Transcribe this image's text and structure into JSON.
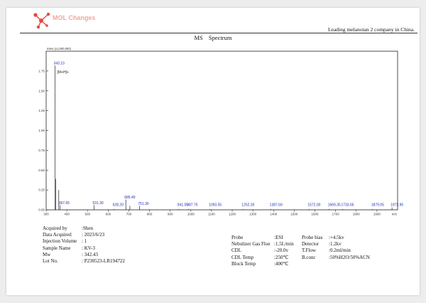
{
  "header": {
    "brand": "MOL Changes",
    "tagline": "Leading melanotan 2 company in China."
  },
  "title": {
    "ms": "MS",
    "spectrum": "Spectrum"
  },
  "chart_data": {
    "type": "bar",
    "y_axis_label": "Inten.(x1,000,000)",
    "x_unit": "m/z",
    "xlim": [
      300,
      2000
    ],
    "ylim": [
      0,
      2.0
    ],
    "x_ticks": [
      300,
      400,
      500,
      600,
      700,
      800,
      900,
      1000,
      1100,
      1200,
      1300,
      1400,
      1500,
      1600,
      1700,
      1800,
      1900
    ],
    "y_ticks": [
      0.0,
      0.25,
      0.5,
      0.75,
      1.0,
      1.25,
      1.5,
      1.75
    ],
    "y_tick_labels": [
      "0.00",
      "0.25",
      "0.50",
      "0.75",
      "1.00",
      "1.25",
      "1.50",
      "1.75"
    ],
    "peaks": [
      {
        "mz": 343.1,
        "intensity": 1.82,
        "label": "343.10",
        "annotation": "[M+H]+"
      },
      {
        "mz": 347.0,
        "intensity": 0.39,
        "label": ""
      },
      {
        "mz": 367.65,
        "intensity": 0.06,
        "label": "367.65"
      },
      {
        "mz": 361.0,
        "intensity": 0.25,
        "label": ""
      },
      {
        "mz": 531.3,
        "intensity": 0.06,
        "label": "531.30"
      },
      {
        "mz": 628.2,
        "intensity": 0.01,
        "label": "628.20"
      },
      {
        "mz": 685.4,
        "intensity": 0.13,
        "label": "685.40"
      },
      {
        "mz": 705.0,
        "intensity": 0.05,
        "label": ""
      },
      {
        "mz": 751.3,
        "intensity": 0.05,
        "label": "751.30"
      },
      {
        "mz": 941.55,
        "intensity": 0.01,
        "label": "941.55"
      },
      {
        "mz": 987.75,
        "intensity": 0.01,
        "label": "987.75"
      },
      {
        "mz": 1093.55,
        "intensity": 0.01,
        "label": "1093.55"
      },
      {
        "mz": 1252.35,
        "intensity": 0.01,
        "label": "1252.35"
      },
      {
        "mz": 1387.6,
        "intensity": 0.01,
        "label": "1387.60"
      },
      {
        "mz": 1572.0,
        "intensity": 0.01,
        "label": "1572.00"
      },
      {
        "mz": 1669.35,
        "intensity": 0.01,
        "label": "1669.35"
      },
      {
        "mz": 1733.65,
        "intensity": 0.01,
        "label": "1733.65"
      },
      {
        "mz": 1879.05,
        "intensity": 0.01,
        "label": "1879.05"
      },
      {
        "mz": 1972.95,
        "intensity": 0.03,
        "label": "1972.95"
      }
    ],
    "colors": {
      "peak": "#222222",
      "peak_label": "#1a2fb8",
      "axis": "#222222"
    }
  },
  "sample_info": [
    {
      "label": "Acquired by",
      "value": ":Shen"
    },
    {
      "label": "Data Acquired",
      "value": ": 2023/6/23"
    },
    {
      "label": "Injection Volume",
      "value": ": 1"
    },
    {
      "label": "Sample Name",
      "value": ": KV-3"
    },
    {
      "label": "Mw",
      "value": ": 342.43"
    },
    {
      "label": "Lot No.",
      "value": ": P230523-LR194722"
    }
  ],
  "conditions_left": [
    {
      "label": "Probe",
      "value": ":ESI"
    },
    {
      "label": "Nebulizer Gas Floe",
      "value": ":1.5L/min"
    },
    {
      "label": "CDL",
      "value": ":-20.0v"
    },
    {
      "label": "CDL Temp",
      "value": ":250℃"
    },
    {
      "label": "Block Temp",
      "value": ":400℃"
    }
  ],
  "conditions_right": [
    {
      "label": "Probe bias",
      "value": ":+4.5kv"
    },
    {
      "label": "Detector",
      "value": ":1.2kv"
    },
    {
      "label": "T.Flow",
      "value": ":0.2ml/min"
    },
    {
      "label": "B.conc",
      "value": ":50%H2O/50%ACN"
    }
  ]
}
